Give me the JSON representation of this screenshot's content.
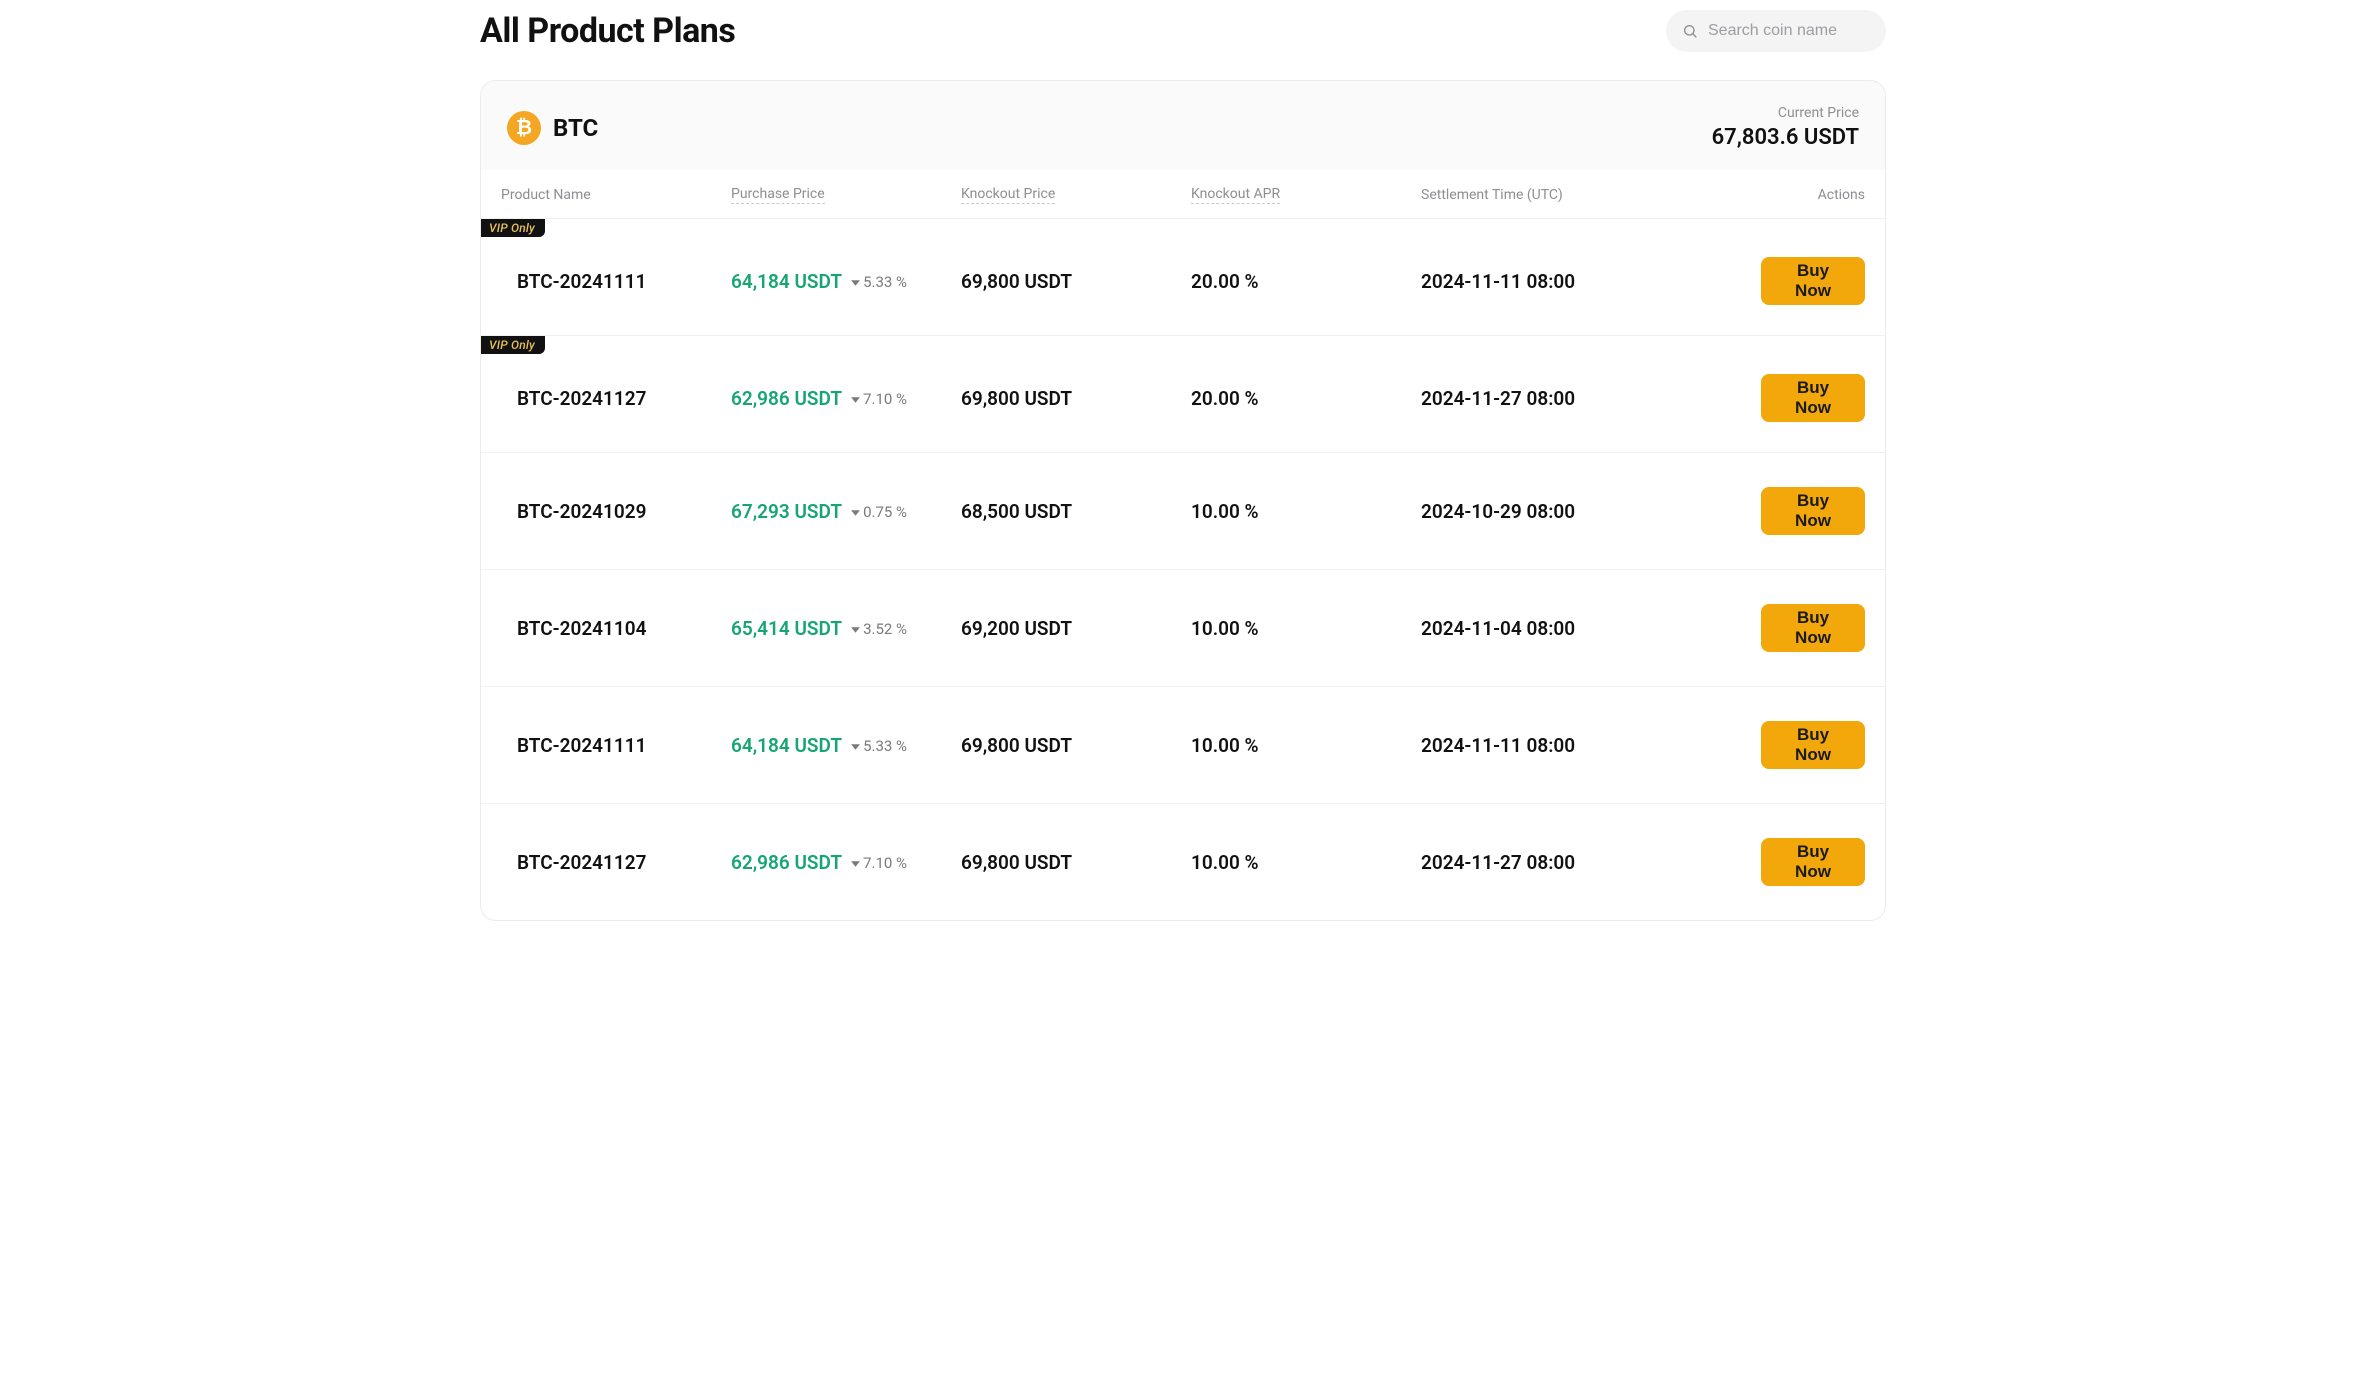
{
  "page": {
    "title": "All Product Plans",
    "search_placeholder": "Search coin name"
  },
  "coin": {
    "symbol": "BTC",
    "icon_glyph": "₿",
    "icon_bg": "#f5a623",
    "current_price_label": "Current Price",
    "current_price": "67,803.6 USDT"
  },
  "columns": {
    "product_name": "Product Name",
    "purchase_price": "Purchase Price",
    "knockout_price": "Knockout Price",
    "knockout_apr": "Knockout APR",
    "settlement": "Settlement Time (UTC)",
    "actions": "Actions"
  },
  "colors": {
    "price_up": "#17a673",
    "muted": "#8e8e93",
    "button_bg": "#f2a70b",
    "button_fg": "#1a1a1a",
    "vip_bg": "#111111",
    "vip_fg": "#e8c05a",
    "border": "#eceaea",
    "row_border": "#f0f0f1",
    "panel_header_bg": "#fafafa"
  },
  "buy_label": "Buy Now",
  "vip_label": "VIP Only",
  "rows": [
    {
      "vip": true,
      "product_name": "BTC-20241111",
      "purchase_price": "64,184 USDT",
      "delta_dir": "down",
      "delta_pct": "5.33 %",
      "knockout_price": "69,800 USDT",
      "knockout_apr": "20.00 %",
      "settlement": "2024-11-11 08:00"
    },
    {
      "vip": true,
      "product_name": "BTC-20241127",
      "purchase_price": "62,986 USDT",
      "delta_dir": "down",
      "delta_pct": "7.10 %",
      "knockout_price": "69,800 USDT",
      "knockout_apr": "20.00 %",
      "settlement": "2024-11-27 08:00"
    },
    {
      "vip": false,
      "product_name": "BTC-20241029",
      "purchase_price": "67,293 USDT",
      "delta_dir": "down",
      "delta_pct": "0.75 %",
      "knockout_price": "68,500 USDT",
      "knockout_apr": "10.00 %",
      "settlement": "2024-10-29 08:00"
    },
    {
      "vip": false,
      "product_name": "BTC-20241104",
      "purchase_price": "65,414 USDT",
      "delta_dir": "down",
      "delta_pct": "3.52 %",
      "knockout_price": "69,200 USDT",
      "knockout_apr": "10.00 %",
      "settlement": "2024-11-04 08:00"
    },
    {
      "vip": false,
      "product_name": "BTC-20241111",
      "purchase_price": "64,184 USDT",
      "delta_dir": "down",
      "delta_pct": "5.33 %",
      "knockout_price": "69,800 USDT",
      "knockout_apr": "10.00 %",
      "settlement": "2024-11-11 08:00"
    },
    {
      "vip": false,
      "product_name": "BTC-20241127",
      "purchase_price": "62,986 USDT",
      "delta_dir": "down",
      "delta_pct": "7.10 %",
      "knockout_price": "69,800 USDT",
      "knockout_apr": "10.00 %",
      "settlement": "2024-11-27 08:00"
    }
  ]
}
